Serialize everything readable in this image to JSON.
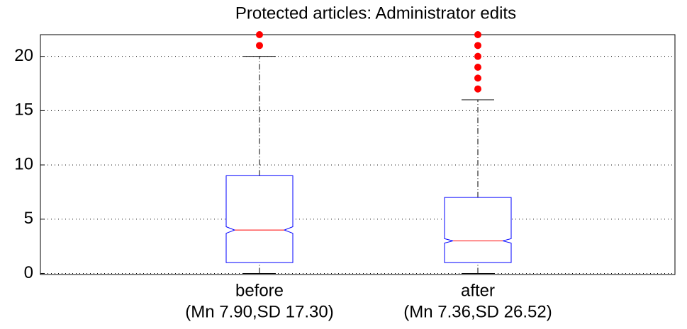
{
  "chart_data": {
    "type": "boxplot",
    "title": "Protected articles: Administrator edits",
    "categories": [
      "before",
      "after"
    ],
    "category_notes": [
      "(Mn 7.90,SD 17.30)",
      "(Mn 7.36,SD 26.52)"
    ],
    "boxes": [
      {
        "whisker_low": 0,
        "q1": 1,
        "notch_low": 3.7,
        "median": 4,
        "notch_high": 4.3,
        "q3": 9,
        "whisker_high": 20,
        "outliers": [
          21,
          22
        ]
      },
      {
        "whisker_low": 0,
        "q1": 1,
        "notch_low": 2.8,
        "median": 3,
        "notch_high": 3.2,
        "q3": 7,
        "whisker_high": 16,
        "outliers": [
          17,
          18,
          19,
          20,
          21,
          22
        ]
      }
    ],
    "box_color": "#0000ff",
    "median_color": "#ff0000",
    "outlier_color": "#ff0000",
    "ylim": [
      -0.1,
      22
    ],
    "yticks": [
      0,
      5,
      10,
      15,
      20
    ],
    "grid": true
  }
}
